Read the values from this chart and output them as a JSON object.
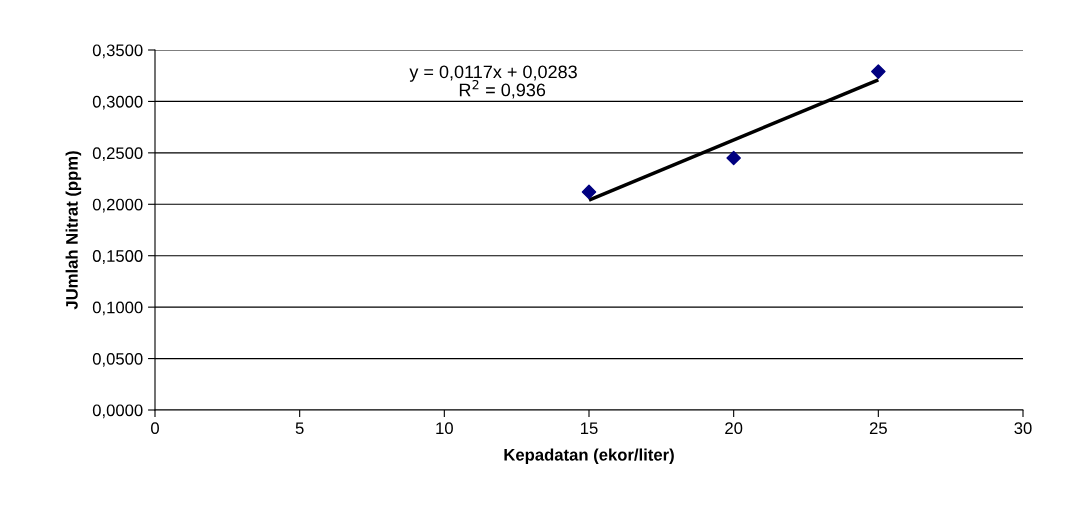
{
  "chart_data": {
    "type": "scatter",
    "xlabel": "Kepadatan (ekor/liter)",
    "ylabel": "JUmlah Nitrat (ppm)",
    "series": [
      {
        "color": "#000080",
        "marker": "diamond",
        "x": [
          15,
          20,
          25
        ],
        "values": [
          0.212,
          0.245,
          0.329
        ]
      },
      {
        "type": "line",
        "color": "#000000",
        "marker": "none",
        "line_style": "solid",
        "x": [
          15,
          25
        ],
        "values": [
          0.204,
          0.321
        ]
      }
    ],
    "annotations": [
      "y = 0,0117x + 0,0283",
      "R$^{2}$ = 0,936"
    ],
    "xlim": [
      0,
      30
    ],
    "xticks": [
      0,
      5,
      10,
      15,
      20,
      25,
      30
    ],
    "ylim": [
      0,
      0.35
    ],
    "yticks": [
      {
        "value": 0,
        "label": "0,0000"
      },
      {
        "value": 0.05,
        "label": "0,0500"
      },
      {
        "value": 0.1,
        "label": "0,1000"
      },
      {
        "value": 0.15,
        "label": "0,1500"
      },
      {
        "value": 0.2,
        "label": "0,2000"
      },
      {
        "value": 0.25,
        "label": "0,2500"
      },
      {
        "value": 0.3,
        "label": "0,3000"
      },
      {
        "value": 0.35,
        "label": "0,3500"
      }
    ],
    "grid": "y",
    "legend": false
  }
}
